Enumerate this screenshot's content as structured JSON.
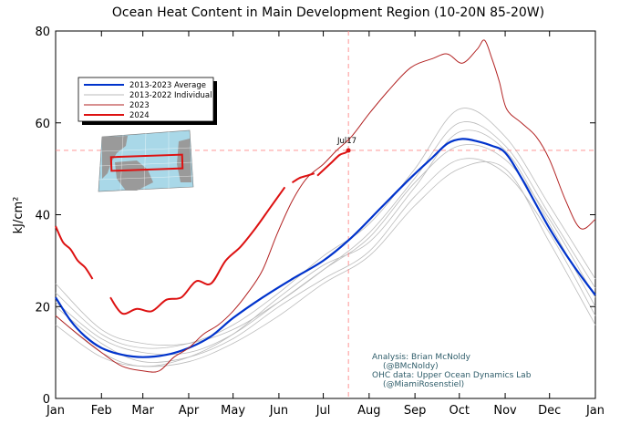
{
  "chart_data": {
    "type": "line",
    "title": "Ocean Heat Content in Main Development Region (10-20N 85-20W)",
    "ylabel": "kJ/cm²",
    "xlabel": "",
    "ylim": [
      0,
      80
    ],
    "xlim": [
      0,
      365
    ],
    "yticks": [
      0,
      20,
      40,
      60,
      80
    ],
    "xticks": [
      {
        "label": "Jan",
        "day": 0
      },
      {
        "label": "Feb",
        "day": 31
      },
      {
        "label": "Mar",
        "day": 59
      },
      {
        "label": "Apr",
        "day": 90
      },
      {
        "label": "May",
        "day": 120
      },
      {
        "label": "Jun",
        "day": 151
      },
      {
        "label": "Jul",
        "day": 181
      },
      {
        "label": "Aug",
        "day": 212
      },
      {
        "label": "Sep",
        "day": 243
      },
      {
        "label": "Oct",
        "day": 273
      },
      {
        "label": "Nov",
        "day": 304
      },
      {
        "label": "Dec",
        "day": 334
      },
      {
        "label": "Jan",
        "day": 365
      }
    ],
    "grid": false,
    "legend_position": "top-left",
    "legend": [
      {
        "label": "2013-2023 Average",
        "color": "#0033cc"
      },
      {
        "label": "2013-2022 Individual",
        "color": "#bbbbbb"
      },
      {
        "label": "2023",
        "color": "#b22222"
      },
      {
        "label": "2024",
        "color": "#dd1111"
      }
    ],
    "reference": {
      "label": "Jul17",
      "x": 198,
      "y": 54,
      "color": "#ff8888"
    },
    "series": [
      {
        "name": "2013-2023 Average",
        "color": "#0033cc",
        "x": [
          0,
          10,
          20,
          31,
          45,
          59,
          75,
          90,
          105,
          120,
          140,
          160,
          181,
          200,
          220,
          240,
          255,
          265,
          275,
          285,
          295,
          304,
          315,
          334,
          350,
          365
        ],
        "y": [
          22,
          17,
          13.5,
          11,
          9.5,
          9,
          9.5,
          11,
          13.5,
          17.5,
          22,
          26,
          30,
          35,
          41.5,
          48,
          52.5,
          55.5,
          56.5,
          56,
          55,
          53.5,
          48,
          37,
          29,
          22.5
        ]
      },
      {
        "name": "2023",
        "color": "#b22222",
        "x": [
          0,
          15,
          31,
          45,
          59,
          70,
          80,
          90,
          100,
          110,
          120,
          130,
          140,
          150,
          160,
          170,
          181,
          190,
          200,
          212,
          225,
          240,
          255,
          265,
          275,
          285,
          290,
          295,
          300,
          305,
          315,
          325,
          334,
          345,
          355,
          365
        ],
        "y": [
          18,
          14,
          10,
          7,
          6,
          6,
          9,
          11,
          14,
          16,
          19,
          23,
          28,
          36,
          43,
          48,
          51,
          54,
          57,
          62,
          67,
          72,
          74,
          75,
          73,
          76,
          78,
          74,
          69,
          63,
          60,
          57,
          52,
          43,
          37,
          39
        ]
      },
      {
        "name": "2024 segment A",
        "color": "#dd1111",
        "x": [
          0,
          5,
          10,
          15,
          20,
          25
        ],
        "y": [
          37.5,
          34,
          32.5,
          30,
          28.5,
          26
        ]
      },
      {
        "name": "2024 segment B",
        "color": "#dd1111",
        "x": [
          37,
          45,
          55,
          65,
          75,
          85,
          95,
          105,
          115,
          125,
          135,
          145,
          155
        ],
        "y": [
          22,
          18.5,
          19.5,
          19,
          21.5,
          22,
          25.5,
          25,
          30,
          33,
          37,
          41.5,
          46
        ]
      },
      {
        "name": "2024 segment C",
        "color": "#dd1111",
        "x": [
          160,
          165,
          170,
          175
        ],
        "y": [
          47,
          48,
          48.5,
          49
        ]
      },
      {
        "name": "2024 segment D",
        "color": "#dd1111",
        "x": [
          177,
          182,
          187,
          192,
          196,
          198
        ],
        "y": [
          48.5,
          50,
          51.5,
          53,
          53.5,
          54
        ]
      },
      {
        "name": "2013-2022 individual 1",
        "color": "#bbbbbb",
        "x": [
          0,
          31,
          59,
          90,
          120,
          151,
          181,
          212,
          243,
          273,
          304,
          334,
          365
        ],
        "y": [
          25,
          15,
          12,
          12,
          15,
          21,
          28,
          36,
          48,
          60,
          55,
          40,
          24
        ]
      },
      {
        "name": "2013-2022 individual 2",
        "color": "#bbbbbb",
        "x": [
          0,
          31,
          59,
          90,
          120,
          151,
          181,
          212,
          243,
          273,
          304,
          334,
          365
        ],
        "y": [
          20,
          12,
          8,
          9,
          13,
          20,
          26,
          32,
          44,
          52,
          49,
          36,
          18
        ]
      },
      {
        "name": "2013-2022 individual 3",
        "color": "#bbbbbb",
        "x": [
          0,
          31,
          59,
          90,
          120,
          151,
          181,
          212,
          243,
          273,
          304,
          334,
          365
        ],
        "y": [
          18,
          10,
          7,
          9,
          14,
          22,
          29,
          34,
          46,
          58,
          54,
          38,
          20
        ]
      },
      {
        "name": "2013-2022 individual 4",
        "color": "#bbbbbb",
        "x": [
          0,
          31,
          59,
          90,
          120,
          151,
          181,
          212,
          243,
          273,
          304,
          334,
          365
        ],
        "y": [
          23,
          14,
          11,
          12,
          16,
          23,
          31,
          38,
          50,
          63,
          57,
          42,
          26
        ]
      },
      {
        "name": "2013-2022 individual 5",
        "color": "#bbbbbb",
        "x": [
          0,
          31,
          59,
          90,
          120,
          151,
          181,
          212,
          243,
          273,
          304,
          334,
          365
        ],
        "y": [
          16,
          9,
          7,
          8,
          12,
          18,
          25,
          31,
          42,
          50,
          50,
          34,
          16
        ]
      },
      {
        "name": "2013-2022 individual 6",
        "color": "#bbbbbb",
        "x": [
          0,
          31,
          59,
          90,
          120,
          151,
          181,
          212,
          243,
          273,
          304,
          334,
          365
        ],
        "y": [
          21,
          13,
          10,
          10,
          14,
          21,
          28,
          35,
          47,
          55,
          52,
          39,
          22
        ]
      }
    ]
  },
  "legend_labels": [
    "2013-2023 Average",
    "2013-2022 Individual",
    "2023",
    "2024"
  ],
  "credits": {
    "line1": "Analysis: Brian McNoldy",
    "line2": "(@BMcNoldy)",
    "line3": "OHC data: Upper Ocean Dynamics Lab",
    "line4": "(@MiamiRosenstiel)"
  },
  "inset_map": {
    "label": "MDR region map"
  }
}
